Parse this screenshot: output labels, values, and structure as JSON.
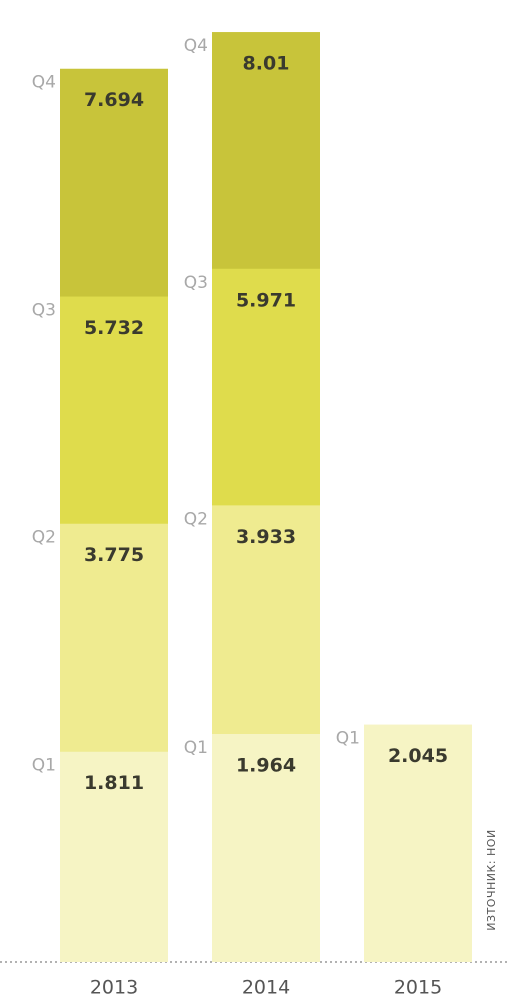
{
  "chart_data": {
    "type": "bar",
    "categories": [
      "2013",
      "2014",
      "2015"
    ],
    "series": [
      {
        "name": "Q1",
        "color": "#f6f4c4",
        "values": [
          1.811,
          1.964,
          2.045
        ]
      },
      {
        "name": "Q2",
        "color": "#efeb90",
        "values": [
          3.775,
          3.933,
          null
        ]
      },
      {
        "name": "Q3",
        "color": "#dfdc4c",
        "values": [
          5.732,
          5.971,
          null
        ]
      },
      {
        "name": "Q4",
        "color": "#c8c43a",
        "values": [
          7.694,
          8.01,
          null
        ]
      }
    ],
    "ylim": [
      0,
      8.2
    ],
    "source": "ИЗТОЧНИК: НОИ"
  }
}
